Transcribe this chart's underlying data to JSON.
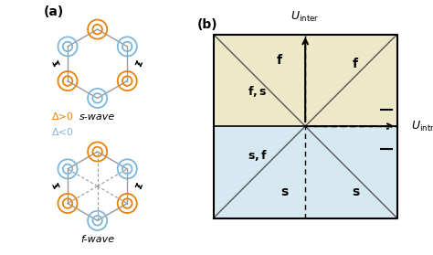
{
  "panel_a_label": "(a)",
  "panel_b_label": "(b)",
  "orange_color": "#E8820C",
  "blue_color": "#7EB6D9",
  "gray_color": "#888888",
  "black_color": "#000000",
  "bg_color": "#ffffff",
  "top_bg": "#EDE9C8",
  "bottom_bg": "#D6E8F0",
  "s_wave_label": "s-wave",
  "f_wave_label": "f-wave",
  "delta_pos_label": "Δ>0",
  "delta_neg_label": "Δ<0",
  "border_color": "#555555",
  "regions": {
    "top_left_label": "f,s",
    "top_mid_label": "f",
    "top_right_label": "f",
    "bottom_left_label": "s,f",
    "bottom_mid_label": "s",
    "bottom_right_label": "s"
  }
}
